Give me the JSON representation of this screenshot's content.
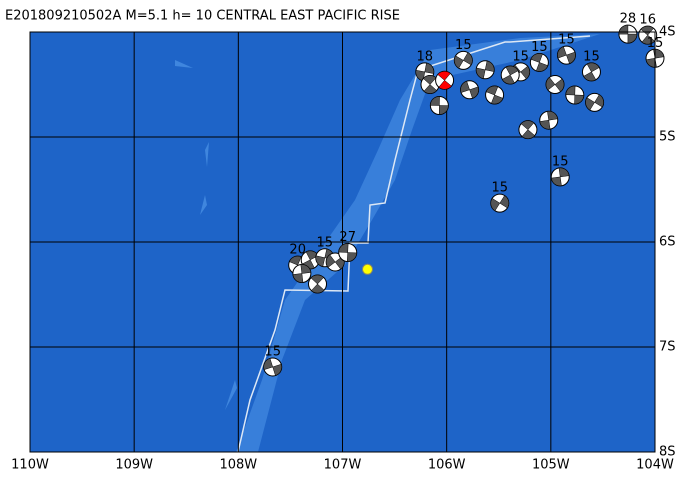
{
  "chart_data": {
    "type": "map",
    "title": "E201809210502A M=5.1 h= 10 CENTRAL EAST PACIFIC RISE",
    "xlim": [
      -110,
      -104
    ],
    "ylim": [
      -8,
      -4
    ],
    "xticks": [
      {
        "value": -110,
        "label": "110W"
      },
      {
        "value": -109,
        "label": "109W"
      },
      {
        "value": -108,
        "label": "108W"
      },
      {
        "value": -107,
        "label": "107W"
      },
      {
        "value": -106,
        "label": "106W"
      },
      {
        "value": -105,
        "label": "105W"
      },
      {
        "value": -104,
        "label": "104W"
      }
    ],
    "yticks": [
      {
        "value": -4,
        "label": "4S"
      },
      {
        "value": -5,
        "label": "5S"
      },
      {
        "value": -6,
        "label": "6S"
      },
      {
        "value": -7,
        "label": "7S"
      },
      {
        "value": -8,
        "label": "8S"
      }
    ],
    "grid": true,
    "main_event": {
      "lon": -106.02,
      "lat": -4.46,
      "color": "#ff0000"
    },
    "epicenter": {
      "lon": -106.76,
      "lat": -6.26,
      "color": "#ffff00"
    },
    "events": [
      {
        "lon": -104.26,
        "lat": -4.02,
        "label": "28"
      },
      {
        "lon": -104.07,
        "lat": -4.03,
        "label": "16"
      },
      {
        "lon": -104.0,
        "lat": -4.25,
        "label": "15"
      },
      {
        "lon": -105.84,
        "lat": -4.27,
        "label": "15"
      },
      {
        "lon": -104.85,
        "lat": -4.22,
        "label": "15"
      },
      {
        "lon": -105.11,
        "lat": -4.29,
        "label": "15"
      },
      {
        "lon": -104.61,
        "lat": -4.38,
        "label": "15"
      },
      {
        "lon": -106.21,
        "lat": -4.38,
        "label": "18"
      },
      {
        "lon": -105.29,
        "lat": -4.38,
        "label": "15"
      },
      {
        "lon": -106.07,
        "lat": -4.7
      },
      {
        "lon": -105.22,
        "lat": -4.93
      },
      {
        "lon": -105.02,
        "lat": -4.84
      },
      {
        "lon": -104.58,
        "lat": -4.67
      },
      {
        "lon": -105.78,
        "lat": -4.55
      },
      {
        "lon": -105.54,
        "lat": -4.6
      },
      {
        "lon": -105.39,
        "lat": -4.41
      },
      {
        "lon": -105.63,
        "lat": -4.36
      },
      {
        "lon": -104.96,
        "lat": -4.5
      },
      {
        "lon": -104.77,
        "lat": -4.6
      },
      {
        "lon": -106.16,
        "lat": -4.5
      },
      {
        "lon": -104.91,
        "lat": -5.38,
        "label": "15"
      },
      {
        "lon": -105.49,
        "lat": -5.63,
        "label": "15"
      },
      {
        "lon": -107.67,
        "lat": -7.19,
        "label": "15"
      },
      {
        "lon": -107.43,
        "lat": -6.22,
        "label": "20"
      },
      {
        "lon": -107.31,
        "lat": -6.17
      },
      {
        "lon": -107.17,
        "lat": -6.15,
        "label": "15"
      },
      {
        "lon": -107.07,
        "lat": -6.19
      },
      {
        "lon": -106.95,
        "lat": -6.1,
        "label": "27"
      },
      {
        "lon": -107.24,
        "lat": -6.4
      },
      {
        "lon": -107.39,
        "lat": -6.3
      }
    ]
  }
}
